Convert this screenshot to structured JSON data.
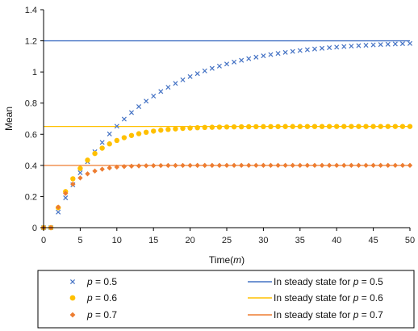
{
  "chart_data": {
    "type": "scatter",
    "xlabel": "Time(m)",
    "xlabel_parts": {
      "text": "Time(",
      "var": "m",
      "close": ")"
    },
    "ylabel": "Mean",
    "xlim": [
      0,
      50
    ],
    "ylim": [
      0,
      1.4
    ],
    "x_ticks": [
      "0",
      "5",
      "10",
      "15",
      "20",
      "25",
      "30",
      "35",
      "40",
      "45",
      "50"
    ],
    "y_ticks": [
      "0",
      "0.2",
      "0.4",
      "0.6",
      "0.8",
      "1",
      "1.2",
      "1.4"
    ],
    "x_tick_values": [
      0,
      5,
      10,
      15,
      20,
      25,
      30,
      35,
      40,
      45,
      50
    ],
    "y_tick_values": [
      0,
      0.2,
      0.4,
      0.6,
      0.8,
      1.0,
      1.2,
      1.4
    ],
    "grid": false,
    "legend_placement": "bottom",
    "series": [
      {
        "name": "p = 0.5",
        "var": "p",
        "suffix": " = 0.5",
        "marker": "x",
        "color": "#4472C4",
        "steady_state": 1.2,
        "rate": 0.087
      },
      {
        "name": "p = 0.6",
        "var": "p",
        "suffix": " = 0.6",
        "marker": "circle",
        "color": "#FFC000",
        "steady_state": 0.65,
        "rate": 0.22
      },
      {
        "name": "p = 0.7",
        "var": "p",
        "suffix": " = 0.7",
        "marker": "diamond",
        "color": "#ED7D31",
        "steady_state": 0.4,
        "rate": 0.4
      }
    ],
    "steady_lines": [
      {
        "name": "In steady state for p = 0.5",
        "prefix": "In steady state for ",
        "var": "p",
        "suffix": " = 0.5",
        "y": 1.2,
        "color": "#4472C4"
      },
      {
        "name": "In steady state for p = 0.6",
        "prefix": "In steady state for ",
        "var": "p",
        "suffix": " = 0.6",
        "y": 0.65,
        "color": "#FFC000"
      },
      {
        "name": "In steady state for p = 0.7",
        "prefix": "In steady state for ",
        "var": "p",
        "suffix": " = 0.7",
        "y": 0.4,
        "color": "#ED7D31"
      }
    ]
  }
}
